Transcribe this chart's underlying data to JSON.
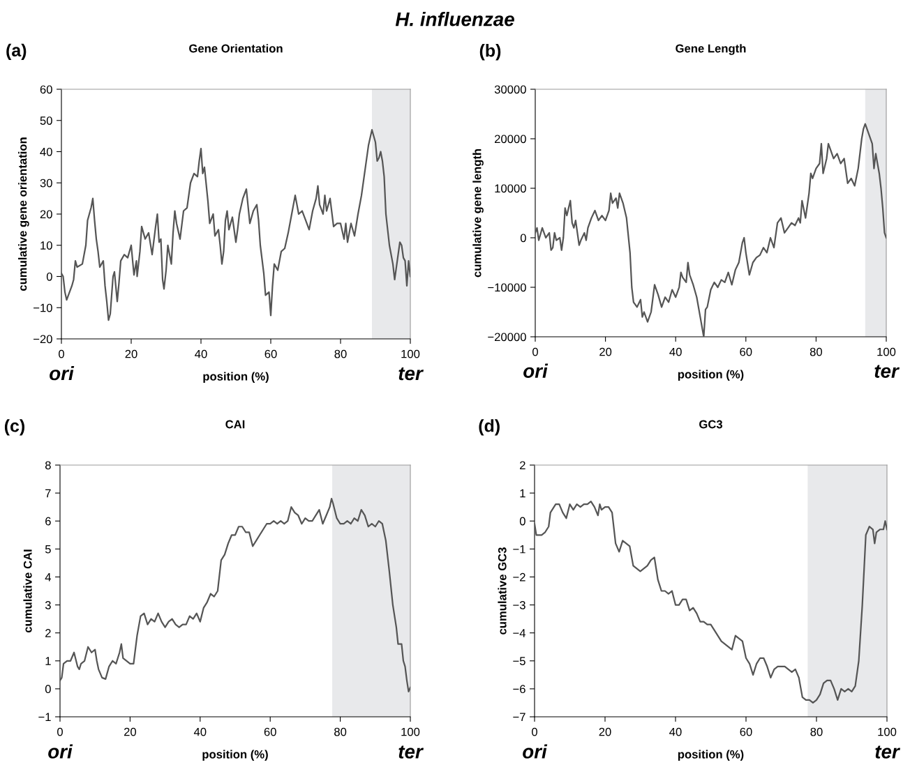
{
  "chart_data": [
    {
      "type": "line",
      "title": "Gene Orientation",
      "xlabel": "position (%)",
      "ylabel": "cumulative gene orientation",
      "annotations": [
        "(a)",
        "ori",
        "ter",
        "H. influenzae"
      ],
      "xlim": [
        0,
        100
      ],
      "xticks": [
        0,
        20,
        40,
        60,
        80,
        100
      ],
      "ylim": [
        -20,
        60
      ],
      "yticks": [
        {
          "value": -20,
          "label": "−20"
        },
        {
          "value": -10,
          "label": "−10"
        },
        0,
        10,
        20,
        30,
        40,
        50,
        60
      ],
      "grid": false,
      "legend": false,
      "marker": "none",
      "line_style": "solid",
      "bands": [
        {
          "axis": "x",
          "from": 89,
          "to": 100,
          "color": "#e8e9eb"
        }
      ],
      "series": [
        {
          "color": "#555555",
          "x": [
            0,
            0.5,
            1,
            1.5,
            3,
            3.5,
            4,
            4.5,
            6,
            7,
            7.5,
            8.5,
            9,
            9.5,
            10,
            10.5,
            11,
            12,
            12.5,
            13,
            13.5,
            14,
            14.8,
            15.2,
            16,
            16.5,
            17,
            18,
            19,
            20,
            20.5,
            20.8,
            21.5,
            21.7,
            22.5,
            23,
            24,
            25,
            26,
            27,
            27.5,
            28,
            28.5,
            29,
            29.4,
            30,
            30.5,
            31.5,
            32,
            32.5,
            33,
            34,
            35,
            36,
            37,
            38,
            39,
            39.5,
            40,
            40.5,
            41,
            42,
            42.5,
            43.5,
            44,
            45,
            45.5,
            46,
            46.5,
            47,
            47.5,
            48,
            49,
            50,
            50.5,
            51,
            52,
            53,
            54,
            55,
            56,
            56.5,
            57,
            58,
            58.5,
            59.5,
            60,
            60.5,
            61,
            62,
            63,
            64,
            65,
            66,
            67,
            68,
            69,
            70,
            71,
            72,
            73,
            73.5,
            74,
            75,
            75.5,
            76,
            77,
            78,
            79,
            80,
            81,
            81.5,
            82,
            83,
            84,
            85,
            86,
            87,
            88,
            89,
            90,
            90.5,
            91,
            91.5,
            92,
            92.5,
            93,
            94,
            95,
            95.5,
            96,
            97,
            97.5,
            98,
            98.5,
            99,
            99.5,
            100
          ],
          "values": [
            1,
            0,
            -5,
            -7.5,
            -3,
            -1,
            5,
            3,
            4,
            10,
            18,
            22,
            25,
            18,
            12,
            8,
            3,
            5,
            -3,
            -8,
            -14,
            -12,
            0,
            1.5,
            -8,
            -2,
            5,
            7,
            6,
            10,
            4,
            0.5,
            5,
            0,
            8,
            16,
            12,
            14,
            7,
            16,
            20,
            11,
            12,
            -1,
            -4,
            2,
            10,
            4,
            14,
            21,
            17,
            12,
            21,
            22,
            30,
            33,
            32,
            37,
            41,
            33,
            35,
            24,
            17,
            20,
            13,
            15,
            10,
            4,
            8,
            18,
            21,
            15,
            19,
            11,
            15,
            20,
            25,
            28,
            17,
            21,
            23,
            18,
            10,
            1,
            -6,
            -5,
            -12.5,
            -3,
            4,
            2,
            8,
            9,
            14,
            20,
            26,
            20,
            21,
            18,
            15,
            21,
            25,
            29,
            23,
            20,
            26,
            21,
            25,
            16,
            17,
            17,
            12,
            17,
            11,
            17,
            13,
            20,
            26,
            34,
            42,
            47,
            43,
            37,
            38,
            40,
            37,
            32,
            20,
            10,
            4,
            -1,
            3,
            11,
            10,
            6,
            5,
            -3,
            5,
            0
          ]
        }
      ]
    },
    {
      "type": "line",
      "title": "Gene Length",
      "xlabel": "position (%)",
      "ylabel": "cumulative gene length",
      "annotations": [
        "(b)",
        "ori",
        "ter"
      ],
      "xlim": [
        0,
        100
      ],
      "xticks": [
        0,
        20,
        40,
        60,
        80,
        100
      ],
      "ylim": [
        -20000,
        30000
      ],
      "yticks": [
        {
          "value": -20000,
          "label": "−20000"
        },
        {
          "value": -10000,
          "label": "−10000"
        },
        0,
        10000,
        20000,
        30000
      ],
      "grid": false,
      "legend": false,
      "marker": "none",
      "line_style": "solid",
      "bands": [
        {
          "axis": "x",
          "from": 94,
          "to": 100,
          "color": "#e8e9eb"
        }
      ],
      "series": [
        {
          "color": "#555555",
          "x": [
            0,
            0.5,
            1,
            2,
            3,
            4,
            4.5,
            5,
            5.5,
            6,
            7,
            7.5,
            8,
            8.5,
            9,
            10,
            10.5,
            11,
            11.5,
            12.5,
            13,
            14,
            14.5,
            15,
            16,
            17,
            18,
            19,
            20,
            21,
            21.5,
            22,
            23,
            23.5,
            24,
            25,
            26,
            27,
            27.5,
            28,
            29,
            30,
            30.5,
            31,
            32,
            33,
            34,
            35,
            36,
            37,
            38,
            39,
            40,
            41,
            41.5,
            42,
            43,
            43.5,
            44,
            45,
            46,
            47,
            48,
            48.5,
            49,
            50,
            51,
            52,
            53,
            54,
            55,
            56,
            57,
            58,
            59,
            59.5,
            60,
            61,
            62,
            63,
            64,
            65,
            66,
            67,
            68,
            69,
            70,
            71,
            72,
            73,
            74,
            75,
            75.5,
            76,
            77,
            78,
            78.5,
            79,
            80,
            81,
            81.5,
            82,
            83,
            83.5,
            84,
            85,
            86,
            87,
            88,
            89,
            90,
            91,
            92,
            93,
            93.5,
            94,
            95,
            96,
            96.5,
            97,
            97.5,
            98,
            98.5,
            99,
            99.5,
            100
          ],
          "values": [
            1000,
            2000,
            -500,
            2000,
            0,
            1000,
            -2500,
            -2000,
            1000,
            -500,
            0,
            -2500,
            0,
            6000,
            4500,
            7500,
            3000,
            2000,
            3500,
            -1500,
            -500,
            1000,
            -500,
            2000,
            4000,
            5500,
            3500,
            4500,
            3500,
            5500,
            9000,
            7000,
            8000,
            6000,
            9000,
            7000,
            4000,
            -3000,
            -10000,
            -13000,
            -14000,
            -12500,
            -16000,
            -15000,
            -17000,
            -15000,
            -9500,
            -11500,
            -14000,
            -12000,
            -13000,
            -10500,
            -12000,
            -10000,
            -7000,
            -8000,
            -9000,
            -5000,
            -7500,
            -9500,
            -12000,
            -16000,
            -20000,
            -14500,
            -14000,
            -10500,
            -9000,
            -10000,
            -8500,
            -9000,
            -7000,
            -9500,
            -6500,
            -5000,
            -1000,
            0,
            -3000,
            -7500,
            -5000,
            -4000,
            -3500,
            -2000,
            -3000,
            0,
            -2000,
            3000,
            4000,
            1000,
            2000,
            3000,
            2500,
            4000,
            3000,
            7500,
            4000,
            9000,
            13000,
            12000,
            14000,
            15000,
            19000,
            13000,
            16000,
            19000,
            18000,
            16000,
            17000,
            15000,
            16000,
            11000,
            12000,
            10500,
            14000,
            20000,
            22000,
            23000,
            21000,
            19000,
            14000,
            17000,
            15000,
            13000,
            10000,
            6000,
            1000,
            0
          ]
        }
      ]
    },
    {
      "type": "line",
      "title": "CAI",
      "xlabel": "position (%)",
      "ylabel": "cumulative CAI",
      "annotations": [
        "(c)",
        "ori",
        "ter"
      ],
      "xlim": [
        0,
        100
      ],
      "xticks": [
        0,
        20,
        40,
        60,
        80,
        100
      ],
      "ylim": [
        -1,
        8
      ],
      "yticks": [
        {
          "value": -1,
          "label": "−1"
        },
        0,
        1,
        2,
        3,
        4,
        5,
        6,
        7,
        8
      ],
      "grid": false,
      "legend": false,
      "marker": "none",
      "line_style": "solid",
      "bands": [
        {
          "axis": "x",
          "from": 77.7,
          "to": 100,
          "color": "#e8e9eb"
        }
      ],
      "series": [
        {
          "color": "#555555",
          "x": [
            0,
            0.5,
            1,
            2,
            3,
            4,
            5,
            5.5,
            6,
            7,
            8,
            9,
            10,
            10.5,
            11,
            12,
            13,
            14,
            15,
            16,
            17,
            17.5,
            18,
            20,
            21,
            22,
            23,
            24,
            25,
            26,
            27,
            28,
            29,
            30,
            31,
            32,
            33,
            34,
            35,
            36,
            37,
            38,
            39,
            40,
            41,
            42,
            43,
            44,
            45,
            46,
            47,
            48,
            49,
            50,
            51,
            52,
            53,
            54,
            55,
            56,
            57,
            58,
            59,
            60,
            61,
            62,
            63,
            64,
            65,
            66,
            67,
            68,
            69,
            70,
            71,
            72,
            73,
            74,
            75,
            76,
            77,
            77.5,
            78,
            79,
            80,
            81,
            82,
            83,
            84,
            85,
            86,
            87,
            88,
            89,
            90,
            91,
            92,
            93,
            94,
            95,
            96,
            96.5,
            97.5,
            98,
            98.5,
            99,
            99.5,
            100
          ],
          "values": [
            0.3,
            0.4,
            0.9,
            1.0,
            1.0,
            1.3,
            0.8,
            0.7,
            0.9,
            1.0,
            1.5,
            1.3,
            1.4,
            1.0,
            0.7,
            0.4,
            0.35,
            0.8,
            1.0,
            0.9,
            1.3,
            1.6,
            1.1,
            0.9,
            0.9,
            1.9,
            2.6,
            2.7,
            2.3,
            2.5,
            2.4,
            2.7,
            2.4,
            2.2,
            2.4,
            2.5,
            2.3,
            2.2,
            2.3,
            2.3,
            2.6,
            2.5,
            2.7,
            2.4,
            2.9,
            3.1,
            3.4,
            3.3,
            3.5,
            4.6,
            4.8,
            5.2,
            5.5,
            5.5,
            5.8,
            5.8,
            5.6,
            5.6,
            5.1,
            5.3,
            5.5,
            5.7,
            5.9,
            5.9,
            6.0,
            5.9,
            6.0,
            5.9,
            6.0,
            6.5,
            6.3,
            6.2,
            5.9,
            6.1,
            6.0,
            6.0,
            6.2,
            6.4,
            5.9,
            6.2,
            6.5,
            6.8,
            6.6,
            6.1,
            5.9,
            5.9,
            6.0,
            5.9,
            6.1,
            6.0,
            6.4,
            6.2,
            5.8,
            5.9,
            5.8,
            6.0,
            5.9,
            5.3,
            4.2,
            3.0,
            2.2,
            1.6,
            1.6,
            1.0,
            0.8,
            0.3,
            -0.1,
            0.05
          ]
        }
      ]
    },
    {
      "type": "line",
      "title": "GC3",
      "xlabel": "position (%)",
      "ylabel": "cumulative GC3",
      "annotations": [
        "(d)",
        "ori",
        "ter"
      ],
      "xlim": [
        0,
        100
      ],
      "xticks": [
        0,
        20,
        40,
        60,
        80,
        100
      ],
      "ylim": [
        -7,
        2
      ],
      "yticks": [
        {
          "value": -7,
          "label": "−7"
        },
        {
          "value": -6,
          "label": "−6"
        },
        {
          "value": -5,
          "label": "−5"
        },
        {
          "value": -4,
          "label": "−4"
        },
        {
          "value": -3,
          "label": "−3"
        },
        {
          "value": -2,
          "label": "−2"
        },
        {
          "value": -1,
          "label": "−1"
        },
        0,
        1,
        2
      ],
      "grid": false,
      "legend": false,
      "marker": "none",
      "line_style": "solid",
      "bands": [
        {
          "axis": "x",
          "from": 77.5,
          "to": 100,
          "color": "#e8e9eb"
        }
      ],
      "series": [
        {
          "color": "#555555",
          "x": [
            0,
            0.5,
            1,
            2,
            3,
            4,
            4.5,
            5,
            6,
            7,
            8,
            9,
            10,
            11,
            12,
            13,
            14,
            15,
            16,
            17,
            18,
            18.5,
            19,
            20,
            21,
            22,
            23,
            24,
            25,
            26,
            27,
            28,
            29,
            30,
            31,
            32,
            33,
            34,
            35,
            36,
            37,
            38,
            39,
            40,
            41,
            42,
            43,
            44,
            45,
            46,
            47,
            48,
            49,
            50,
            51,
            52,
            53,
            54,
            55,
            56,
            57,
            58,
            59,
            60,
            61,
            62,
            63,
            64,
            65,
            66,
            67,
            68,
            69,
            70,
            71,
            72,
            73,
            74,
            75,
            76,
            77,
            78,
            79,
            80,
            81,
            82,
            83,
            84,
            85,
            86,
            87,
            88,
            89,
            90,
            91,
            92,
            93,
            94,
            95,
            96,
            96.5,
            97,
            98,
            99,
            99.5,
            100
          ],
          "values": [
            -0.1,
            -0.5,
            -0.5,
            -0.5,
            -0.4,
            -0.2,
            0.3,
            0.4,
            0.6,
            0.6,
            0.3,
            0.1,
            0.6,
            0.4,
            0.6,
            0.5,
            0.6,
            0.6,
            0.7,
            0.5,
            0.2,
            0.6,
            0.4,
            0.5,
            0.5,
            0.3,
            -0.8,
            -1.1,
            -0.7,
            -0.8,
            -0.9,
            -1.6,
            -1.7,
            -1.8,
            -1.7,
            -1.6,
            -1.4,
            -1.3,
            -2.1,
            -2.5,
            -2.5,
            -2.6,
            -2.5,
            -3.0,
            -3.0,
            -2.8,
            -2.8,
            -3.2,
            -3.1,
            -3.3,
            -3.6,
            -3.6,
            -3.7,
            -3.7,
            -3.9,
            -4.1,
            -4.3,
            -4.4,
            -4.5,
            -4.6,
            -4.1,
            -4.2,
            -4.3,
            -4.9,
            -5.1,
            -5.5,
            -5.1,
            -4.9,
            -4.9,
            -5.2,
            -5.6,
            -5.3,
            -5.2,
            -5.2,
            -5.2,
            -5.3,
            -5.4,
            -5.3,
            -5.6,
            -6.3,
            -6.4,
            -6.4,
            -6.5,
            -6.4,
            -6.2,
            -5.8,
            -5.7,
            -5.7,
            -6.0,
            -6.4,
            -6.0,
            -6.1,
            -6.0,
            -6.1,
            -5.9,
            -5.0,
            -3.0,
            -0.5,
            -0.2,
            -0.3,
            -0.8,
            -0.4,
            -0.3,
            -0.3,
            0.0,
            -0.3
          ]
        }
      ]
    }
  ]
}
